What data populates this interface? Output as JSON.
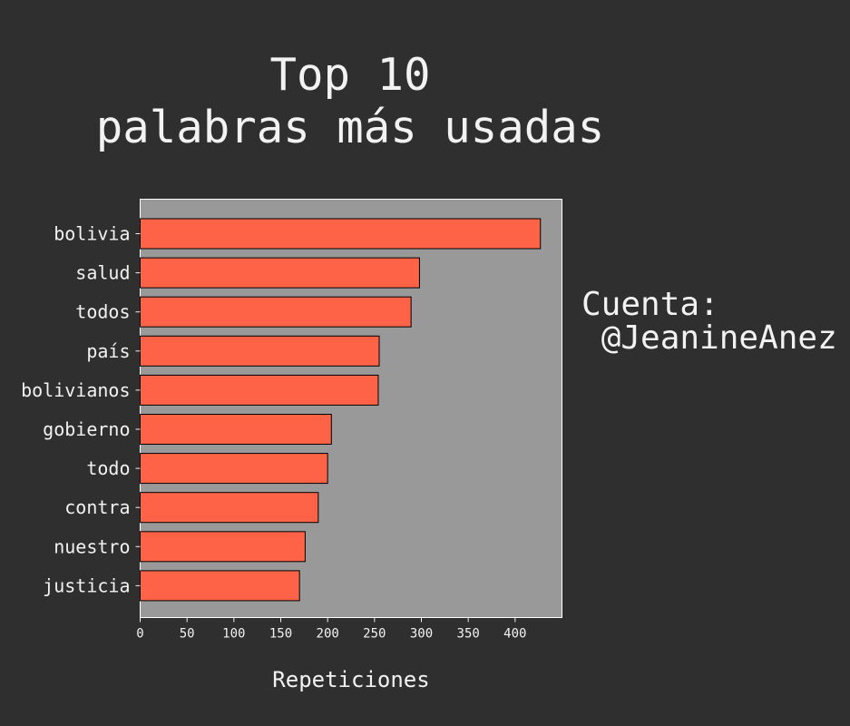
{
  "title_lines": [
    "Top 10",
    "palabras más usadas"
  ],
  "side_text": {
    "label": "Cuenta:",
    "handle": "@JeanineAnez"
  },
  "colors": {
    "background": "#2f2f2f",
    "plot_background": "#999999",
    "bar_fill": "#ff6347",
    "bar_edge": "#000000",
    "text": "#f2f2f2"
  },
  "chart_data": {
    "type": "bar",
    "orientation": "horizontal",
    "categories": [
      "bolivia",
      "salud",
      "todos",
      "país",
      "bolivianos",
      "gobierno",
      "todo",
      "contra",
      "nuestro",
      "justicia"
    ],
    "values": [
      427,
      298,
      289,
      255,
      254,
      204,
      200,
      190,
      176,
      170
    ],
    "xlabel": "Repeticiones",
    "ylabel": "",
    "xlim": [
      0,
      450
    ],
    "xticks": [
      0,
      50,
      100,
      150,
      200,
      250,
      300,
      350,
      400
    ],
    "grid": false,
    "legend": "none"
  }
}
